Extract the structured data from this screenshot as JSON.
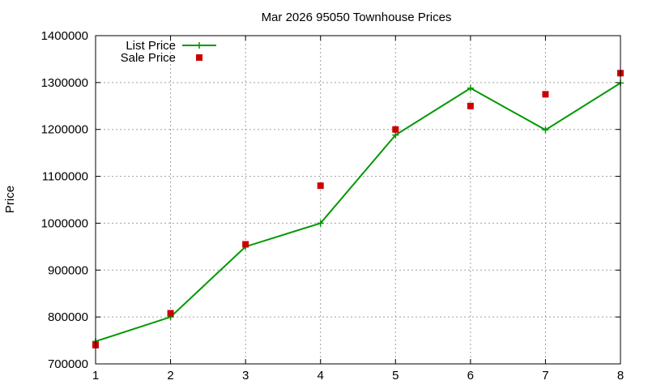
{
  "chart_data": {
    "type": "line",
    "title": "Mar 2026 95050 Townhouse Prices",
    "xlabel": "",
    "ylabel": "Price",
    "xlim": [
      1,
      8
    ],
    "ylim": [
      700000,
      1400000
    ],
    "x_ticks": [
      1,
      2,
      3,
      4,
      5,
      6,
      7,
      8
    ],
    "y_ticks": [
      700000,
      800000,
      900000,
      1000000,
      1100000,
      1200000,
      1300000,
      1400000
    ],
    "grid": true,
    "legend_position": "top-left",
    "series": [
      {
        "name": "List Price",
        "style": "linespoints",
        "marker": "plus",
        "color": "#009900",
        "x": [
          1,
          2,
          3,
          4,
          5,
          6,
          7,
          8
        ],
        "y": [
          748000,
          800000,
          950000,
          1000000,
          1188000,
          1288000,
          1199000,
          1299000
        ]
      },
      {
        "name": "Sale Price",
        "style": "points",
        "marker": "square",
        "color": "#cc0000",
        "x": [
          1,
          2,
          3,
          4,
          5,
          6,
          7,
          8
        ],
        "y": [
          740000,
          808000,
          955000,
          1080000,
          1200000,
          1250000,
          1275000,
          1320000
        ]
      }
    ]
  }
}
